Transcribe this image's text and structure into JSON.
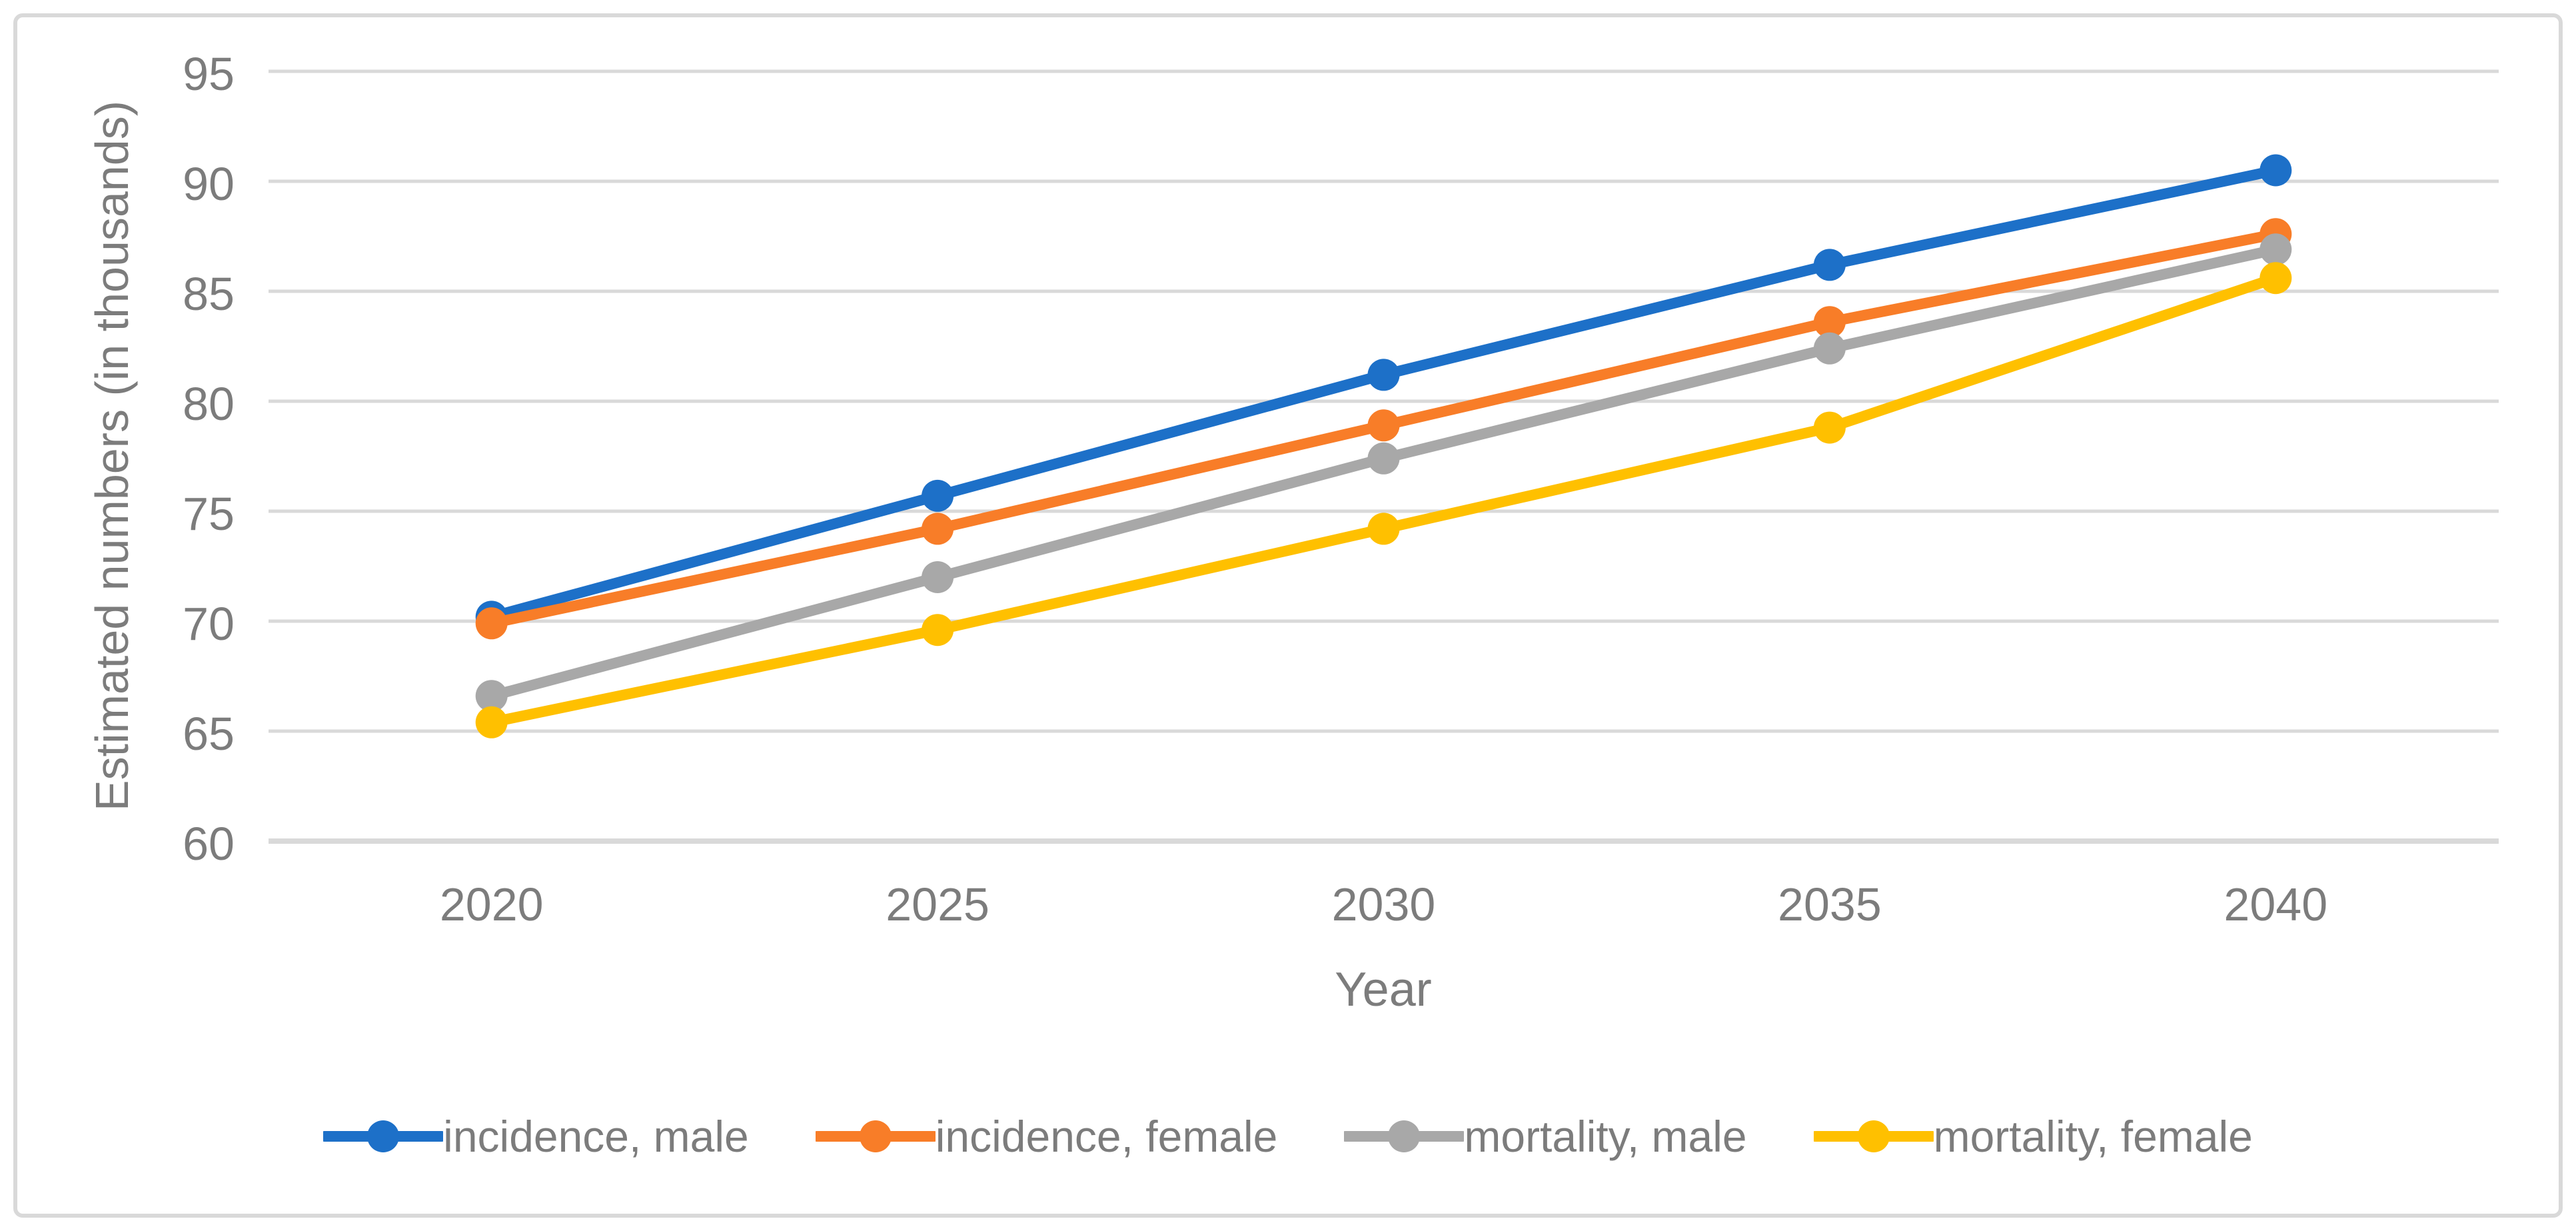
{
  "figure": {
    "border_color": "#D9D9D9",
    "background": "#FFFFFF"
  },
  "chart_data": {
    "type": "line",
    "title": "",
    "xlabel": "Year",
    "ylabel": "Estimated numbers (in thousands)",
    "categories": [
      "2020",
      "2025",
      "2030",
      "2035",
      "2040"
    ],
    "series": [
      {
        "name": "incidence, male",
        "color": "#1D70C8",
        "values": [
          70.2,
          75.7,
          81.2,
          86.2,
          90.5
        ]
      },
      {
        "name": "incidence, female",
        "color": "#F87D28",
        "values": [
          69.9,
          74.2,
          78.9,
          83.6,
          87.6
        ]
      },
      {
        "name": "mortality, male",
        "color": "#A8A8A8",
        "values": [
          66.6,
          72.0,
          77.4,
          82.4,
          86.9
        ]
      },
      {
        "name": "mortality, female",
        "color": "#FFC000",
        "values": [
          65.4,
          69.6,
          74.2,
          78.8,
          85.6
        ]
      }
    ],
    "ylim": [
      60,
      95
    ],
    "yticks": [
      60,
      65,
      70,
      75,
      80,
      85,
      90,
      95
    ],
    "grid": true,
    "gridline_color": "#D9D9D9",
    "axis_text_color": "#7C7C7C",
    "legend_position": "bottom",
    "marker": "circle"
  }
}
